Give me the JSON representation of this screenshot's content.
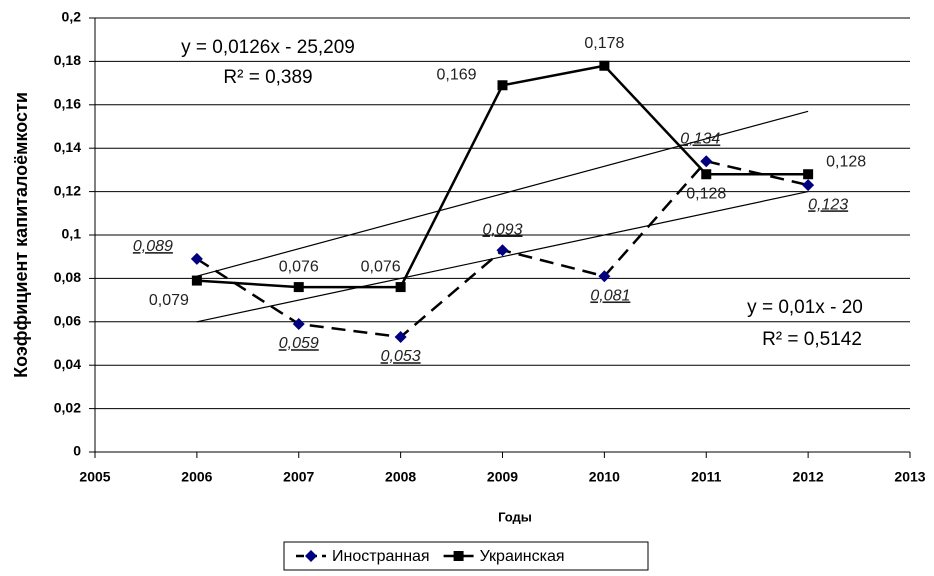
{
  "chart_data": {
    "type": "line",
    "x_label": "Годы",
    "y_label": "Коэффициент   капиталоёмкости",
    "x": [
      2006,
      2007,
      2008,
      2009,
      2010,
      2011,
      2012
    ],
    "series": [
      {
        "name": "Иностранная",
        "color": "#000080",
        "marker": "diamond",
        "dash": true,
        "values": [
          0.089,
          0.059,
          0.053,
          0.093,
          0.081,
          0.134,
          0.123
        ],
        "value_labels": [
          "0,089",
          "0,059",
          "0,053",
          "0,093",
          "0,081",
          "0,134",
          "0,123"
        ]
      },
      {
        "name": "Украинская",
        "color": "#000000",
        "marker": "square",
        "dash": false,
        "values": [
          0.079,
          0.076,
          0.076,
          0.169,
          0.178,
          0.128,
          0.128
        ],
        "value_labels": [
          "0,079",
          "0,076",
          "0,076",
          "0,169",
          "0,178",
          "0,128",
          "0,128"
        ]
      }
    ],
    "trendlines": [
      {
        "equation": "y = 0,0126x - 25,209",
        "r2": "R² = 0,389",
        "x": [
          2006,
          2012
        ],
        "values": [
          0.081,
          0.157
        ]
      },
      {
        "equation": "y = 0,01x - 20",
        "r2": "R² = 0,5142",
        "x": [
          2006,
          2012
        ],
        "values": [
          0.06,
          0.12
        ]
      }
    ],
    "xlim": [
      2005,
      2013
    ],
    "xticks": [
      2005,
      2006,
      2007,
      2008,
      2009,
      2010,
      2011,
      2012,
      2013
    ],
    "ylim": [
      0,
      0.2
    ],
    "yticks": [
      {
        "value": 0,
        "label": "0"
      },
      {
        "value": 0.02,
        "label": "0,02"
      },
      {
        "value": 0.04,
        "label": "0,04"
      },
      {
        "value": 0.06,
        "label": "0,06"
      },
      {
        "value": 0.08,
        "label": "0,08"
      },
      {
        "value": 0.1,
        "label": "0,1"
      },
      {
        "value": 0.12,
        "label": "0,12"
      },
      {
        "value": 0.14,
        "label": "0,14"
      },
      {
        "value": 0.16,
        "label": "0,16"
      },
      {
        "value": 0.18,
        "label": "0,18"
      },
      {
        "value": 0.2,
        "label": "0,2"
      }
    ],
    "grid": true,
    "legend": "bottom"
  }
}
